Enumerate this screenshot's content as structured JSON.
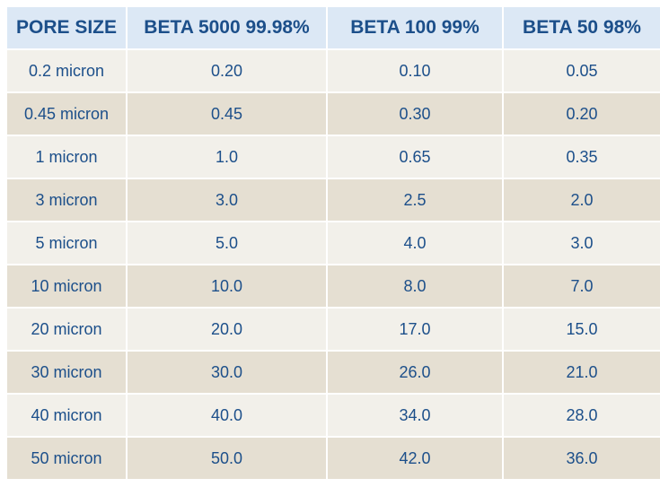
{
  "table": {
    "headers": [
      "PORE SIZE",
      "BETA 5000 99.98%",
      "BETA 100 99%",
      "BETA 50 98%"
    ],
    "rows": [
      [
        "0.2 micron",
        "0.20",
        "0.10",
        "0.05"
      ],
      [
        "0.45 micron",
        "0.45",
        "0.30",
        "0.20"
      ],
      [
        "1 micron",
        "1.0",
        "0.65",
        "0.35"
      ],
      [
        "3 micron",
        "3.0",
        "2.5",
        "2.0"
      ],
      [
        "5 micron",
        "5.0",
        "4.0",
        "3.0"
      ],
      [
        "10 micron",
        "10.0",
        "8.0",
        "7.0"
      ],
      [
        "20 micron",
        "20.0",
        "17.0",
        "15.0"
      ],
      [
        "30 micron",
        "30.0",
        "26.0",
        "21.0"
      ],
      [
        "40 micron",
        "40.0",
        "34.0",
        "28.0"
      ],
      [
        "50 micron",
        "50.0",
        "42.0",
        "36.0"
      ]
    ]
  },
  "colors": {
    "header_bg": "#dce8f5",
    "text": "#1c4f8a",
    "row_light": "#f2f0ea",
    "row_dark": "#e5dfd2"
  }
}
